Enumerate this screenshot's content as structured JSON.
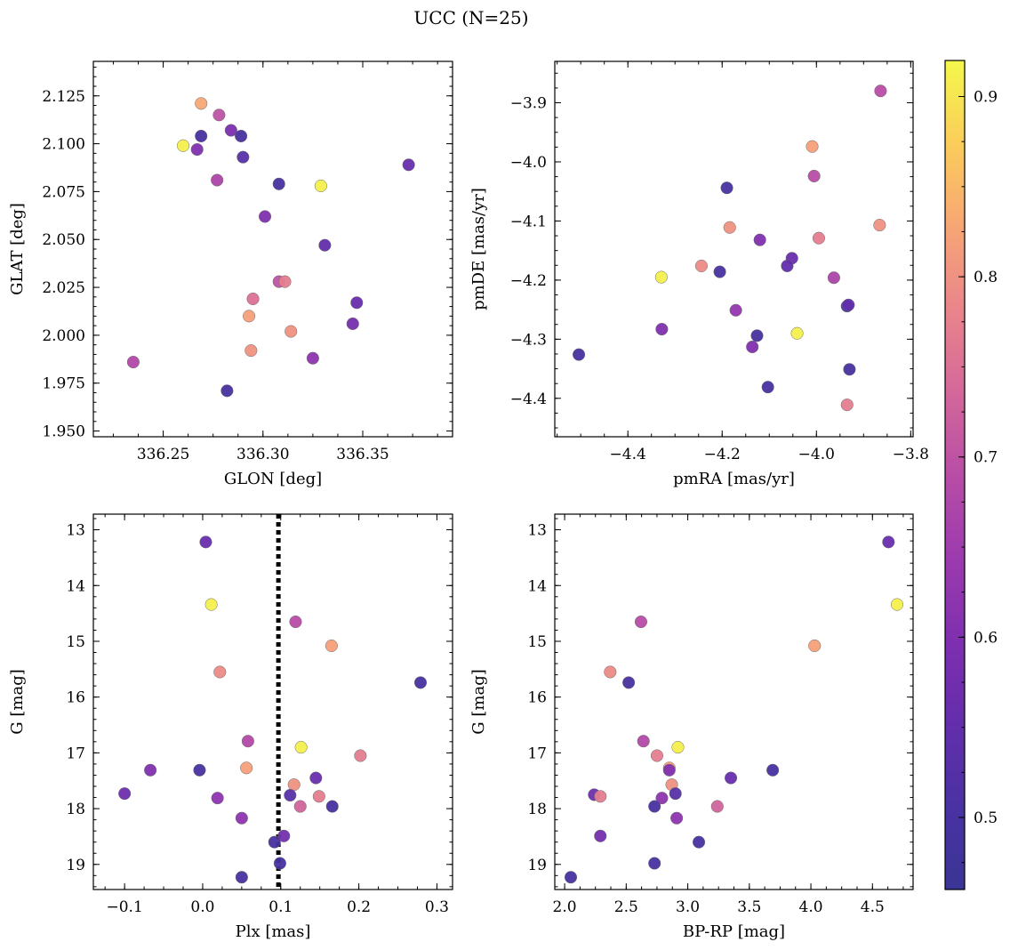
{
  "title": "UCC (N=25)",
  "colorbar": {
    "colormap": "plasma",
    "vmin": 0.46,
    "vmax": 0.92,
    "ticks": [
      0.5,
      0.6,
      0.7,
      0.8,
      0.9
    ],
    "tick_labels": [
      "0.5",
      "0.6",
      "0.7",
      "0.8",
      "0.9"
    ]
  },
  "chart_data": [
    {
      "type": "scatter",
      "name": "galactic-coords",
      "xlabel": "GLON [deg]",
      "ylabel": "GLAT [deg]",
      "xlim": [
        336.215,
        336.395
      ],
      "ylim": [
        1.947,
        2.143
      ],
      "xticks": [
        336.25,
        336.3,
        336.35
      ],
      "xtick_labels": [
        "336.25",
        "336.30",
        "336.35"
      ],
      "yticks": [
        1.95,
        1.975,
        2.0,
        2.025,
        2.05,
        2.075,
        2.1,
        2.125
      ],
      "ytick_labels": [
        "1.950",
        "1.975",
        "2.000",
        "2.025",
        "2.050",
        "2.075",
        "2.100",
        "2.125"
      ],
      "x": [
        336.269,
        336.278,
        336.284,
        336.269,
        336.26,
        336.289,
        336.267,
        336.29,
        336.373,
        336.277,
        336.308,
        336.329,
        336.301,
        336.331,
        336.308,
        336.311,
        336.295,
        336.347,
        336.293,
        336.345,
        336.314,
        336.294,
        336.325,
        336.235,
        336.282
      ],
      "y": [
        2.121,
        2.115,
        2.107,
        2.104,
        2.099,
        2.104,
        2.097,
        2.093,
        2.089,
        2.081,
        2.079,
        2.078,
        2.062,
        2.047,
        2.028,
        2.028,
        2.019,
        2.017,
        2.01,
        2.006,
        2.002,
        1.992,
        1.988,
        1.986,
        1.971
      ],
      "c": [
        0.83,
        0.7,
        0.59,
        0.5,
        0.91,
        0.5,
        0.6,
        0.53,
        0.56,
        0.67,
        0.5,
        0.91,
        0.6,
        0.55,
        0.7,
        0.77,
        0.75,
        0.56,
        0.82,
        0.58,
        0.8,
        0.8,
        0.62,
        0.68,
        0.5
      ]
    },
    {
      "type": "scatter",
      "name": "proper-motion",
      "xlabel": "pmRA [mas/yr]",
      "ylabel": "pmDE [mas/yr]",
      "xlim": [
        -4.555,
        -3.795
      ],
      "ylim": [
        -4.465,
        -3.83
      ],
      "xticks": [
        -4.4,
        -4.2,
        -4.0,
        -3.8
      ],
      "xtick_labels": [
        "−4.4",
        "−4.2",
        "−4.0",
        "−3.8"
      ],
      "yticks": [
        -4.4,
        -4.3,
        -4.2,
        -4.1,
        -4.0,
        -3.9
      ],
      "ytick_labels": [
        "−4.4",
        "−4.3",
        "−4.2",
        "−4.1",
        "−4.0",
        "−3.9"
      ],
      "x": [
        -3.864,
        -4.009,
        -4.005,
        -4.19,
        -4.184,
        -4.12,
        -3.995,
        -3.866,
        -4.244,
        -4.052,
        -4.062,
        -4.205,
        -4.329,
        -3.963,
        -4.171,
        -3.935,
        -3.932,
        -4.328,
        -4.126,
        -4.041,
        -4.136,
        -4.504,
        -4.103,
        -3.93,
        -3.935
      ],
      "y": [
        -3.88,
        -3.974,
        -4.024,
        -4.044,
        -4.111,
        -4.132,
        -4.129,
        -4.107,
        -4.176,
        -4.163,
        -4.176,
        -4.186,
        -4.195,
        -4.196,
        -4.251,
        -4.244,
        -4.242,
        -4.283,
        -4.294,
        -4.29,
        -4.313,
        -4.326,
        -4.381,
        -4.351,
        -4.411
      ],
      "c": [
        0.69,
        0.82,
        0.69,
        0.5,
        0.8,
        0.6,
        0.77,
        0.8,
        0.79,
        0.56,
        0.55,
        0.5,
        0.91,
        0.67,
        0.63,
        0.5,
        0.55,
        0.6,
        0.5,
        0.91,
        0.6,
        0.5,
        0.5,
        0.5,
        0.77
      ]
    },
    {
      "type": "scatter",
      "name": "parallax-magnitude",
      "xlabel": "Plx [mas]",
      "ylabel": "G [mag]",
      "xlim": [
        -0.14,
        0.32
      ],
      "ylim": [
        19.45,
        12.72
      ],
      "y_inverted": true,
      "xticks": [
        -0.1,
        0.0,
        0.1,
        0.2,
        0.3
      ],
      "xtick_labels": [
        "−0.1",
        "0.0",
        "0.1",
        "0.2",
        "0.3"
      ],
      "yticks": [
        13,
        14,
        15,
        16,
        17,
        18,
        19
      ],
      "ytick_labels": [
        "13",
        "14",
        "15",
        "16",
        "17",
        "18",
        "19"
      ],
      "vline": {
        "x": 0.097,
        "style": "dotted",
        "color": "#000000"
      },
      "x": [
        0.004,
        0.011,
        0.119,
        0.165,
        0.022,
        0.279,
        0.058,
        0.126,
        0.202,
        0.056,
        -0.004,
        -0.067,
        0.145,
        0.117,
        -0.1,
        0.112,
        0.149,
        0.019,
        0.125,
        0.166,
        0.05,
        0.104,
        0.092,
        0.099,
        0.05
      ],
      "y": [
        13.22,
        14.34,
        14.65,
        15.08,
        15.55,
        15.74,
        16.79,
        16.9,
        17.05,
        17.27,
        17.31,
        17.31,
        17.45,
        17.57,
        17.73,
        17.76,
        17.78,
        17.81,
        17.96,
        17.96,
        18.17,
        18.49,
        18.6,
        18.98,
        19.23
      ],
      "c": [
        0.56,
        0.91,
        0.69,
        0.82,
        0.79,
        0.5,
        0.68,
        0.91,
        0.77,
        0.82,
        0.5,
        0.6,
        0.56,
        0.8,
        0.57,
        0.53,
        0.77,
        0.62,
        0.73,
        0.5,
        0.62,
        0.58,
        0.5,
        0.5,
        0.5
      ]
    },
    {
      "type": "scatter",
      "name": "color-magnitude",
      "xlabel": "BP-RP [mag]",
      "ylabel": "G [mag]",
      "xlim": [
        1.92,
        4.83
      ],
      "ylim": [
        19.45,
        12.72
      ],
      "y_inverted": true,
      "xticks": [
        2.0,
        2.5,
        3.0,
        3.5,
        4.0,
        4.5
      ],
      "xtick_labels": [
        "2.0",
        "2.5",
        "3.0",
        "3.5",
        "4.0",
        "4.5"
      ],
      "yticks": [
        13,
        14,
        15,
        16,
        17,
        18,
        19
      ],
      "ytick_labels": [
        "13",
        "14",
        "15",
        "16",
        "17",
        "18",
        "19"
      ],
      "x": [
        4.63,
        4.7,
        2.62,
        4.03,
        2.37,
        2.52,
        2.64,
        2.92,
        2.75,
        2.85,
        3.69,
        2.85,
        3.35,
        2.87,
        2.24,
        2.29,
        2.9,
        2.79,
        3.24,
        2.73,
        2.91,
        2.29,
        3.09,
        2.73,
        2.05
      ],
      "y": [
        13.22,
        14.34,
        14.65,
        15.08,
        15.55,
        15.74,
        16.79,
        16.9,
        17.05,
        17.27,
        17.31,
        17.31,
        17.45,
        17.57,
        17.75,
        17.78,
        17.73,
        17.81,
        17.96,
        17.96,
        18.17,
        18.49,
        18.6,
        18.98,
        19.23
      ],
      "c": [
        0.56,
        0.91,
        0.69,
        0.82,
        0.79,
        0.5,
        0.68,
        0.91,
        0.77,
        0.82,
        0.5,
        0.6,
        0.56,
        0.8,
        0.57,
        0.77,
        0.53,
        0.62,
        0.73,
        0.5,
        0.62,
        0.58,
        0.5,
        0.5,
        0.5
      ]
    }
  ]
}
